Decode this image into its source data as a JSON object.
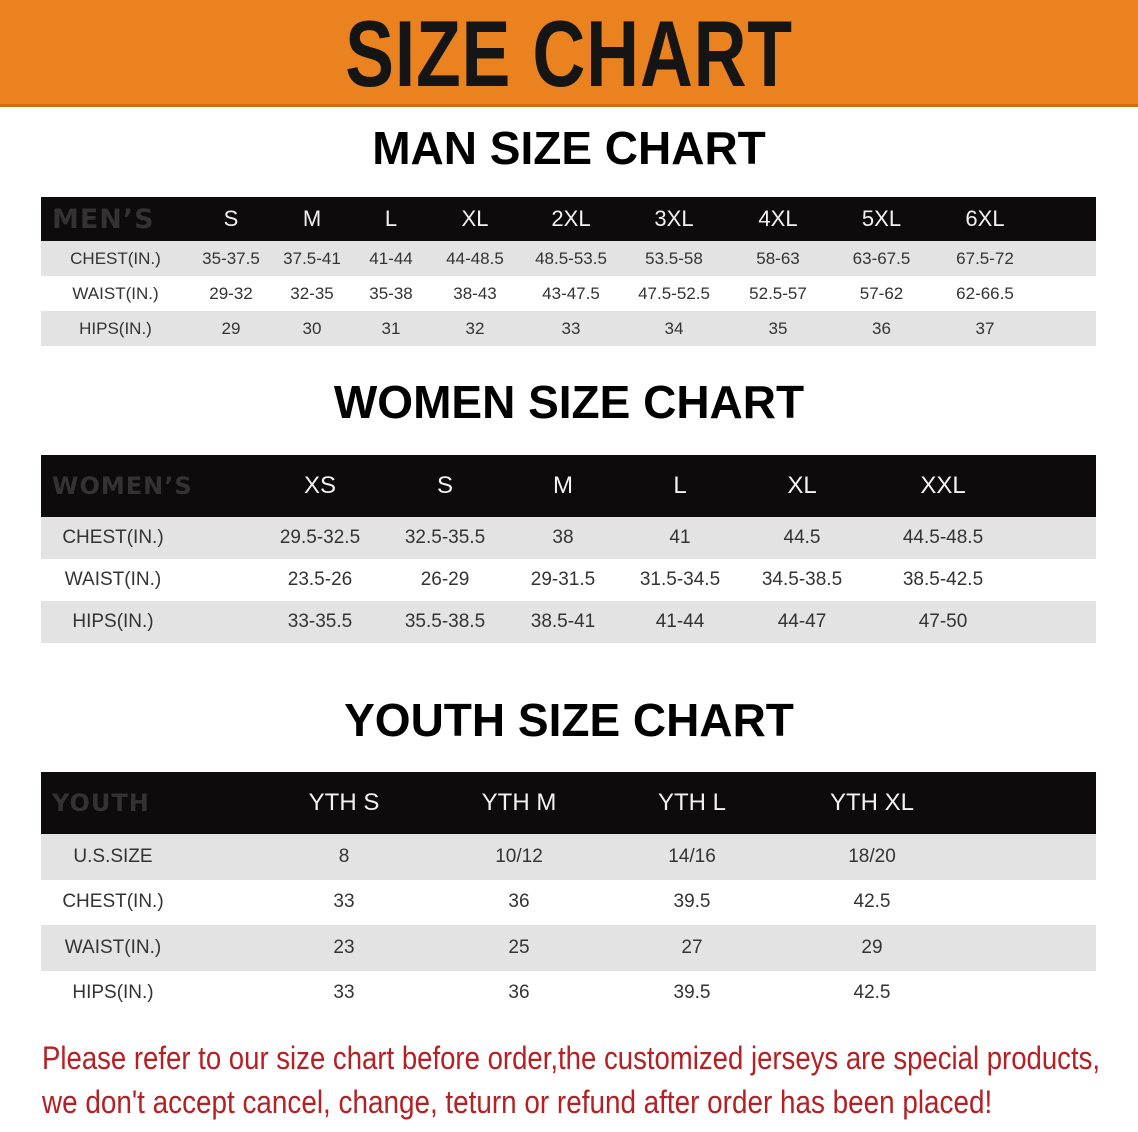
{
  "banner": {
    "title": "SIZE CHART",
    "color": "#e9821f"
  },
  "men": {
    "title": "MAN SIZE CHART",
    "header": "MEN’S",
    "sizes": [
      "S",
      "M",
      "L",
      "XL",
      "2XL",
      "3XL",
      "4XL",
      "5XL",
      "6XL"
    ],
    "rows": [
      {
        "label": "CHEST(IN.)",
        "values": [
          "35-37.5",
          "37.5-41",
          "41-44",
          "44-48.5",
          "48.5-53.5",
          "53.5-58",
          "58-63",
          "63-67.5",
          "67.5-72"
        ]
      },
      {
        "label": "WAIST(IN.)",
        "values": [
          "29-32",
          "32-35",
          "35-38",
          "38-43",
          "43-47.5",
          "47.5-52.5",
          "52.5-57",
          "57-62",
          "62-66.5"
        ]
      },
      {
        "label": "HIPS(IN.)",
        "values": [
          "29",
          "30",
          "31",
          "32",
          "33",
          "34",
          "35",
          "36",
          "37"
        ]
      }
    ]
  },
  "women": {
    "title": "WOMEN SIZE CHART",
    "header": "WOMEN’S",
    "sizes": [
      "XS",
      "S",
      "M",
      "L",
      "XL",
      "XXL"
    ],
    "rows": [
      {
        "label": "CHEST(IN.)",
        "values": [
          "29.5-32.5",
          "32.5-35.5",
          "38",
          "41",
          "44.5",
          "44.5-48.5"
        ]
      },
      {
        "label": "WAIST(IN.)",
        "values": [
          "23.5-26",
          "26-29",
          "29-31.5",
          "31.5-34.5",
          "34.5-38.5",
          "38.5-42.5"
        ]
      },
      {
        "label": "HIPS(IN.)",
        "values": [
          "33-35.5",
          "35.5-38.5",
          "38.5-41",
          "41-44",
          "44-47",
          "47-50"
        ]
      }
    ]
  },
  "youth": {
    "title": "YOUTH SIZE CHART",
    "header": "YOUTH",
    "sizes": [
      "YTH S",
      "YTH M",
      "YTH L",
      "YTH XL"
    ],
    "rows": [
      {
        "label": "U.S.SIZE",
        "values": [
          "8",
          "10/12",
          "14/16",
          "18/20"
        ]
      },
      {
        "label": "CHEST(IN.)",
        "values": [
          "33",
          "36",
          "39.5",
          "42.5"
        ]
      },
      {
        "label": "WAIST(IN.)",
        "values": [
          "23",
          "25",
          "27",
          "29"
        ]
      },
      {
        "label": "HIPS(IN.)",
        "values": [
          "33",
          "36",
          "39.5",
          "42.5"
        ]
      }
    ]
  },
  "note": {
    "line1": "Please refer to our size chart before order,the customized jerseys are special products,",
    "line2": "we don't accept cancel, change, teturn or refund after order has been placed!",
    "color": "#b52024"
  }
}
